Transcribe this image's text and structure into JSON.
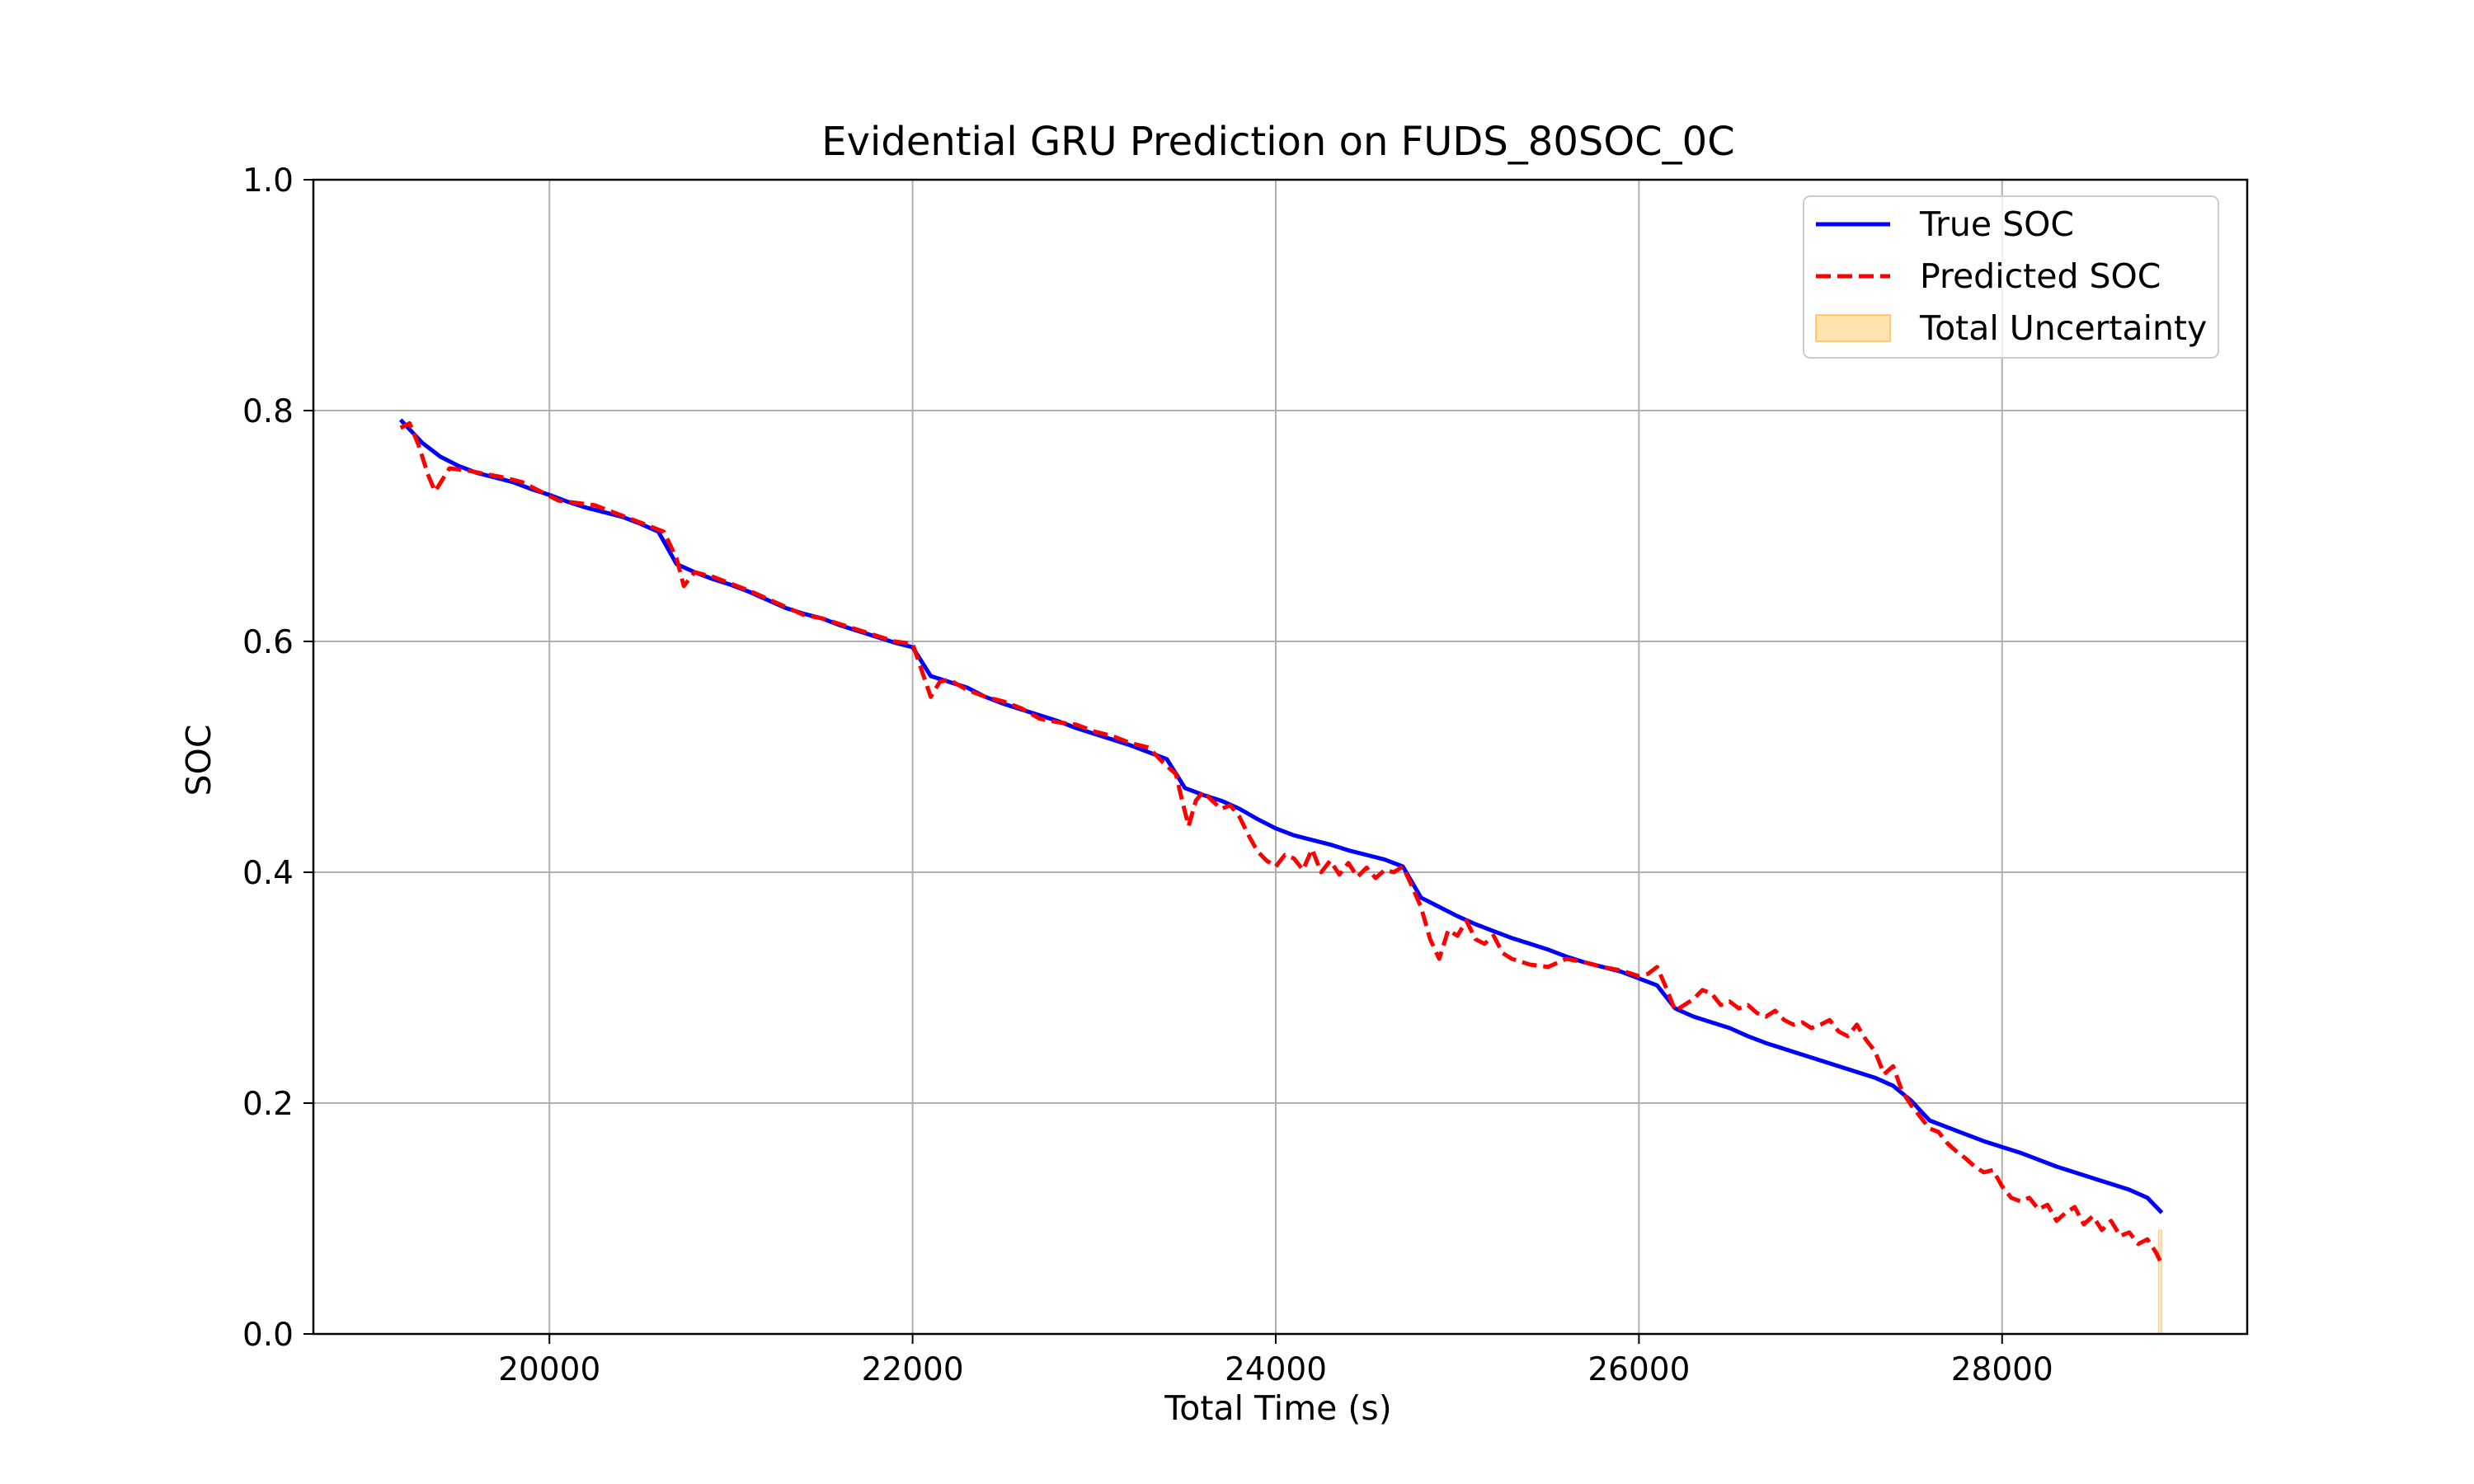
{
  "chart_data": {
    "type": "line",
    "title": "Evidential GRU Prediction on FUDS_80SOC_0C",
    "xlabel": "Total Time (s)",
    "ylabel": "SOC",
    "xlim": [
      18700,
      29350
    ],
    "ylim": [
      0.0,
      1.0
    ],
    "xticks": [
      20000,
      22000,
      24000,
      26000,
      28000
    ],
    "xtick_labels": [
      "20000",
      "22000",
      "24000",
      "26000",
      "28000"
    ],
    "yticks": [
      0.0,
      0.2,
      0.4,
      0.6,
      0.8,
      1.0
    ],
    "ytick_labels": [
      "0.0",
      "0.2",
      "0.4",
      "0.6",
      "0.8",
      "1.0"
    ],
    "grid": true,
    "legend_position": "top-right",
    "series": [
      {
        "name": "True SOC",
        "style": "solid",
        "color": "#0000ff",
        "x": [
          19180,
          19300,
          19400,
          19500,
          19600,
          19700,
          19800,
          19900,
          20000,
          20100,
          20200,
          20300,
          20400,
          20500,
          20600,
          20700,
          20800,
          20900,
          21000,
          21100,
          21200,
          21300,
          21400,
          21500,
          21600,
          21700,
          21800,
          21900,
          22000,
          22100,
          22200,
          22300,
          22400,
          22500,
          22600,
          22700,
          22800,
          22900,
          23000,
          23100,
          23200,
          23300,
          23400,
          23500,
          23600,
          23700,
          23800,
          23900,
          24000,
          24100,
          24200,
          24300,
          24400,
          24500,
          24600,
          24700,
          24800,
          24900,
          25000,
          25100,
          25200,
          25300,
          25400,
          25500,
          25600,
          25700,
          25800,
          25900,
          26000,
          26100,
          26200,
          26300,
          26400,
          26500,
          26600,
          26700,
          26800,
          26900,
          27000,
          27100,
          27200,
          27300,
          27400,
          27500,
          27600,
          27700,
          27800,
          27900,
          28000,
          28100,
          28200,
          28300,
          28400,
          28500,
          28600,
          28700,
          28800,
          28880
        ],
        "y": [
          0.792,
          0.772,
          0.76,
          0.752,
          0.746,
          0.742,
          0.738,
          0.732,
          0.727,
          0.721,
          0.716,
          0.712,
          0.708,
          0.702,
          0.695,
          0.667,
          0.66,
          0.654,
          0.649,
          0.643,
          0.636,
          0.629,
          0.624,
          0.62,
          0.614,
          0.609,
          0.604,
          0.599,
          0.595,
          0.57,
          0.565,
          0.56,
          0.552,
          0.546,
          0.541,
          0.536,
          0.531,
          0.525,
          0.52,
          0.515,
          0.51,
          0.504,
          0.498,
          0.473,
          0.467,
          0.462,
          0.455,
          0.446,
          0.438,
          0.432,
          0.428,
          0.424,
          0.419,
          0.415,
          0.411,
          0.405,
          0.378,
          0.37,
          0.362,
          0.355,
          0.349,
          0.343,
          0.338,
          0.333,
          0.327,
          0.322,
          0.318,
          0.314,
          0.308,
          0.302,
          0.282,
          0.275,
          0.27,
          0.265,
          0.258,
          0.252,
          0.247,
          0.242,
          0.237,
          0.232,
          0.227,
          0.222,
          0.215,
          0.202,
          0.185,
          0.179,
          0.173,
          0.167,
          0.162,
          0.157,
          0.151,
          0.145,
          0.14,
          0.135,
          0.13,
          0.125,
          0.118,
          0.105
        ]
      },
      {
        "name": "Predicted SOC",
        "style": "dashed",
        "color": "#ff0000",
        "x": [
          19180,
          19230,
          19280,
          19330,
          19370,
          19450,
          19550,
          19650,
          19750,
          19850,
          19950,
          20050,
          20150,
          20250,
          20350,
          20450,
          20550,
          20630,
          20700,
          20740,
          20800,
          20900,
          21000,
          21100,
          21200,
          21300,
          21400,
          21500,
          21600,
          21700,
          21800,
          21900,
          22000,
          22050,
          22100,
          22150,
          22200,
          22300,
          22400,
          22500,
          22600,
          22700,
          22800,
          22900,
          23000,
          23100,
          23200,
          23300,
          23380,
          23450,
          23480,
          23520,
          23560,
          23600,
          23650,
          23700,
          23750,
          23800,
          23850,
          23900,
          23950,
          24000,
          24050,
          24100,
          24150,
          24200,
          24250,
          24300,
          24350,
          24400,
          24450,
          24500,
          24550,
          24600,
          24650,
          24700,
          24750,
          24800,
          24850,
          24900,
          24950,
          25000,
          25050,
          25100,
          25150,
          25200,
          25250,
          25300,
          25400,
          25500,
          25600,
          25700,
          25800,
          25900,
          26000,
          26050,
          26100,
          26150,
          26200,
          26250,
          26300,
          26350,
          26400,
          26450,
          26500,
          26550,
          26600,
          26650,
          26700,
          26750,
          26800,
          26850,
          26900,
          26950,
          27000,
          27050,
          27100,
          27150,
          27200,
          27250,
          27300,
          27350,
          27400,
          27450,
          27500,
          27550,
          27600,
          27650,
          27700,
          27750,
          27800,
          27850,
          27900,
          27950,
          28000,
          28050,
          28100,
          28150,
          28200,
          28250,
          28300,
          28350,
          28400,
          28450,
          28500,
          28550,
          28600,
          28650,
          28700,
          28750,
          28800,
          28850,
          28880
        ],
        "y": [
          0.785,
          0.789,
          0.77,
          0.745,
          0.73,
          0.75,
          0.748,
          0.745,
          0.742,
          0.738,
          0.73,
          0.722,
          0.72,
          0.718,
          0.712,
          0.706,
          0.7,
          0.695,
          0.672,
          0.648,
          0.66,
          0.656,
          0.65,
          0.644,
          0.637,
          0.63,
          0.623,
          0.62,
          0.615,
          0.61,
          0.605,
          0.6,
          0.598,
          0.575,
          0.552,
          0.565,
          0.567,
          0.558,
          0.552,
          0.548,
          0.542,
          0.533,
          0.53,
          0.528,
          0.522,
          0.518,
          0.512,
          0.508,
          0.495,
          0.485,
          0.465,
          0.44,
          0.462,
          0.47,
          0.462,
          0.455,
          0.458,
          0.448,
          0.432,
          0.418,
          0.41,
          0.405,
          0.415,
          0.412,
          0.402,
          0.42,
          0.4,
          0.41,
          0.398,
          0.408,
          0.396,
          0.404,
          0.395,
          0.402,
          0.4,
          0.405,
          0.388,
          0.37,
          0.342,
          0.325,
          0.35,
          0.345,
          0.358,
          0.342,
          0.338,
          0.345,
          0.33,
          0.325,
          0.32,
          0.318,
          0.325,
          0.322,
          0.318,
          0.315,
          0.31,
          0.312,
          0.318,
          0.3,
          0.28,
          0.285,
          0.29,
          0.298,
          0.295,
          0.285,
          0.288,
          0.282,
          0.285,
          0.278,
          0.275,
          0.28,
          0.272,
          0.268,
          0.27,
          0.265,
          0.268,
          0.272,
          0.262,
          0.258,
          0.268,
          0.255,
          0.245,
          0.225,
          0.232,
          0.21,
          0.198,
          0.188,
          0.178,
          0.175,
          0.165,
          0.158,
          0.152,
          0.145,
          0.14,
          0.142,
          0.128,
          0.118,
          0.115,
          0.118,
          0.108,
          0.112,
          0.098,
          0.105,
          0.11,
          0.095,
          0.102,
          0.09,
          0.098,
          0.085,
          0.088,
          0.078,
          0.082,
          0.07,
          0.06
        ]
      }
    ],
    "uncertainty_band": {
      "name": "Total Uncertainty",
      "color": "#ffa500",
      "x": [
        28860,
        28880
      ],
      "lower": [
        0.0,
        0.0
      ],
      "upper": [
        0.09,
        0.09
      ]
    }
  }
}
